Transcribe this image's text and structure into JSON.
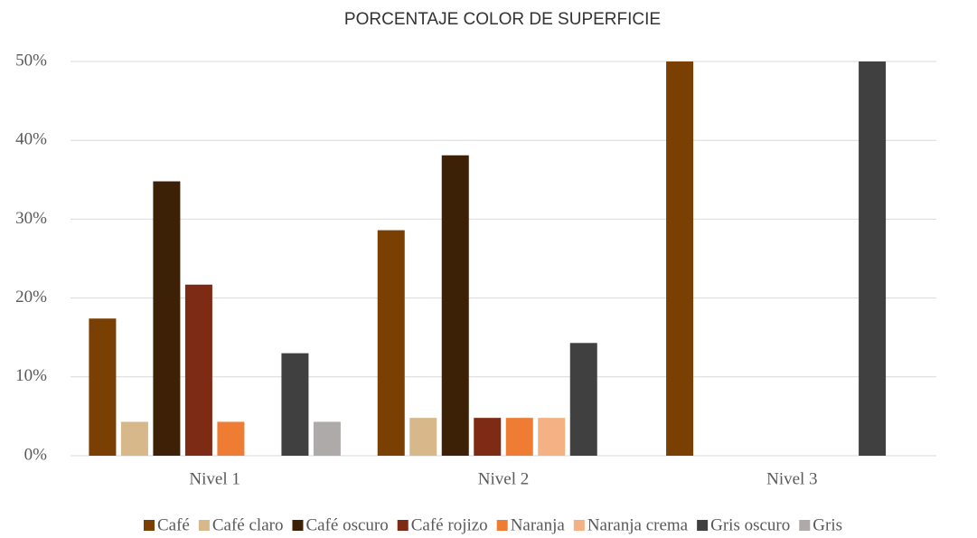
{
  "chart_data": {
    "type": "bar",
    "title": "PORCENTAJE COLOR DE SUPERFICIE",
    "categories": [
      "Nivel 1",
      "Nivel 2",
      "Nivel 3"
    ],
    "series": [
      {
        "name": "Café",
        "color": "#7a3f03",
        "values": [
          17.4,
          28.6,
          50
        ]
      },
      {
        "name": "Café claro",
        "color": "#d6b88a",
        "values": [
          4.3,
          4.8,
          0
        ]
      },
      {
        "name": "Café oscuro",
        "color": "#3d2107",
        "values": [
          34.8,
          38.1,
          0
        ]
      },
      {
        "name": "Café rojizo",
        "color": "#7e2b15",
        "values": [
          21.7,
          4.8,
          0
        ]
      },
      {
        "name": "Naranja",
        "color": "#ee7d33",
        "values": [
          4.3,
          4.8,
          0
        ]
      },
      {
        "name": "Naranja crema",
        "color": "#f4b183",
        "values": [
          0,
          4.8,
          0
        ]
      },
      {
        "name": "Gris oscuro",
        "color": "#404040",
        "values": [
          13.0,
          14.3,
          50
        ]
      },
      {
        "name": "Gris",
        "color": "#aeaaaa",
        "values": [
          4.3,
          0,
          0
        ]
      }
    ],
    "ylim": [
      0,
      50
    ],
    "yticks": [
      {
        "value": 0,
        "label": "0%"
      },
      {
        "value": 10,
        "label": "10%"
      },
      {
        "value": 20,
        "label": "20%"
      },
      {
        "value": 30,
        "label": "30%"
      },
      {
        "value": 40,
        "label": "40%"
      },
      {
        "value": 50,
        "label": "50%"
      }
    ],
    "grid": true,
    "legend": "bottom"
  }
}
